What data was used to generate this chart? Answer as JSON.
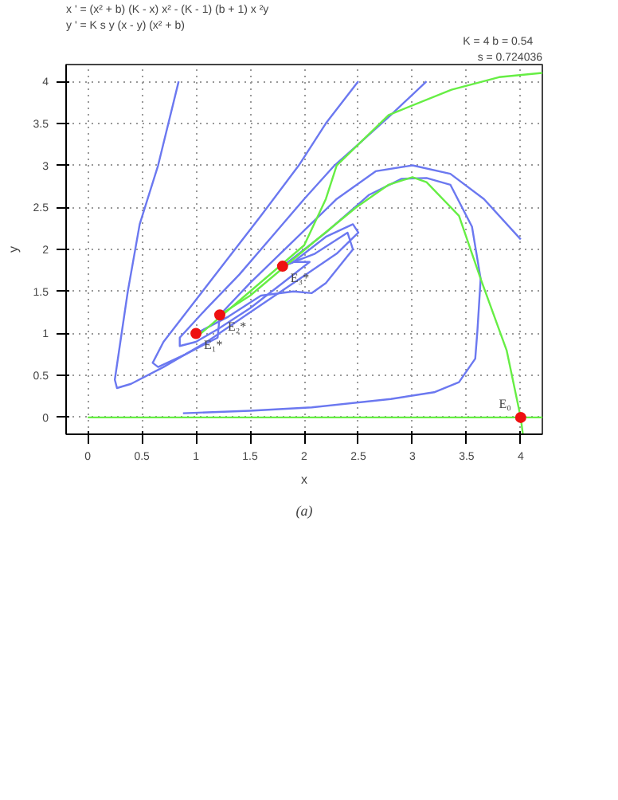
{
  "chart_data": {
    "type": "line",
    "xlabel": "x",
    "ylabel": "y",
    "xlim": [
      -0.2,
      4.2
    ],
    "ylim": [
      -0.2,
      4.2
    ],
    "xticks": [
      0,
      0.5,
      1,
      1.5,
      2,
      2.5,
      3,
      3.5,
      4
    ],
    "yticks": [
      0,
      0.5,
      1,
      1.5,
      2,
      2.5,
      3,
      3.5,
      4
    ],
    "grid": true,
    "line_style": "solid",
    "marker": "none",
    "annotations": [
      "x ' = (x² + b) (K - x) x² - (K - 1) (b + 1) x ²y",
      "y ' = K s y (x - y) (x² + b)",
      "K = 4    b = 0.54",
      "s = 0.724036",
      "(a)",
      {
        "text": "E₀",
        "x": 4.0,
        "y": 0.0
      },
      {
        "text": "E₁*",
        "x": 1.0,
        "y": 1.0
      },
      {
        "text": "E₂*",
        "x": 1.22,
        "y": 1.22
      },
      {
        "text": "E₃*",
        "x": 1.8,
        "y": 1.8
      }
    ],
    "series": [
      {
        "color": "#6b78f0",
        "x": [
          0.84,
          0.65,
          0.48,
          0.37,
          0.29,
          0.25,
          0.27,
          0.4,
          0.7,
          1.1,
          1.5,
          1.9,
          2.3,
          2.5,
          2.45,
          2.2,
          1.9,
          1.8
        ],
        "values": [
          4.0,
          3.0,
          2.3,
          1.5,
          0.8,
          0.45,
          0.35,
          0.4,
          0.6,
          0.9,
          1.25,
          1.6,
          1.95,
          2.2,
          2.3,
          2.15,
          1.85,
          1.8
        ]
      },
      {
        "color": "#6b78f0",
        "x": [
          2.5,
          2.2,
          1.95,
          1.6,
          1.3,
          1.0,
          0.7,
          0.6,
          0.65,
          0.9,
          1.2,
          1.22
        ],
        "values": [
          4.0,
          3.5,
          3.0,
          2.4,
          1.9,
          1.4,
          0.9,
          0.65,
          0.6,
          0.75,
          0.95,
          1.22
        ]
      },
      {
        "color": "#6b78f0",
        "x": [
          3.13,
          2.8,
          2.5,
          2.28,
          2.0,
          1.7,
          1.4,
          1.1,
          0.85,
          0.85,
          1.0,
          1.2,
          1.5,
          1.8,
          2.05,
          1.9,
          1.8
        ],
        "values": [
          4.0,
          3.6,
          3.25,
          3.0,
          2.6,
          2.15,
          1.7,
          1.3,
          0.95,
          0.85,
          0.9,
          1.05,
          1.3,
          1.6,
          1.85,
          1.85,
          1.8
        ]
      },
      {
        "color": "#6b78f0",
        "x": [
          4.0,
          3.66,
          3.35,
          3.0,
          2.66,
          2.3,
          1.9,
          1.5,
          1.22
        ],
        "values": [
          2.12,
          2.6,
          2.9,
          3.0,
          2.93,
          2.6,
          2.1,
          1.6,
          1.22
        ]
      },
      {
        "color": "#6b78f0",
        "x": [
          0.88,
          1.5,
          2.07,
          2.8,
          3.2,
          3.43,
          3.58,
          3.6,
          3.63,
          3.55,
          3.35,
          3.13,
          2.9,
          2.6,
          2.2,
          1.8
        ],
        "values": [
          0.05,
          0.08,
          0.12,
          0.22,
          0.3,
          0.42,
          0.7,
          1.03,
          1.65,
          2.27,
          2.77,
          2.85,
          2.84,
          2.65,
          2.2,
          1.8
        ]
      },
      {
        "color": "#6b78f0",
        "x": [
          1.8,
          2.1,
          2.4,
          2.45,
          2.2,
          2.07,
          1.9,
          1.6,
          1.3,
          1.0
        ],
        "values": [
          1.8,
          1.95,
          2.2,
          2.0,
          1.6,
          1.48,
          1.5,
          1.45,
          1.2,
          1.0
        ]
      },
      {
        "color": "#66ee44",
        "x": [
          1.0,
          1.5,
          2.0,
          2.2,
          2.3,
          2.78,
          3.36,
          3.8,
          4.2
        ],
        "values": [
          0.95,
          1.5,
          2.05,
          2.6,
          3.0,
          3.6,
          3.9,
          4.05,
          4.1
        ]
      },
      {
        "color": "#66ee44",
        "x": [
          4.02,
          4.0,
          3.87,
          3.63,
          3.43,
          3.13,
          3.0,
          2.78,
          2.48,
          2.1,
          1.5,
          1.22
        ],
        "values": [
          -0.2,
          0.0,
          0.8,
          1.65,
          2.4,
          2.8,
          2.86,
          2.77,
          2.5,
          2.1,
          1.45,
          1.22
        ]
      },
      {
        "color": "#66ee44",
        "x": [
          0,
          4.2
        ],
        "values": [
          0,
          0
        ]
      },
      {
        "type": "scatter",
        "marker": "circle",
        "colors": [
          "#ee1111",
          "#ee1111",
          "#ee1111",
          "#ee1111"
        ],
        "x": [
          1.0,
          1.22,
          1.8,
          4.0
        ],
        "values": [
          1.0,
          1.22,
          1.8,
          0.0
        ]
      }
    ]
  }
}
